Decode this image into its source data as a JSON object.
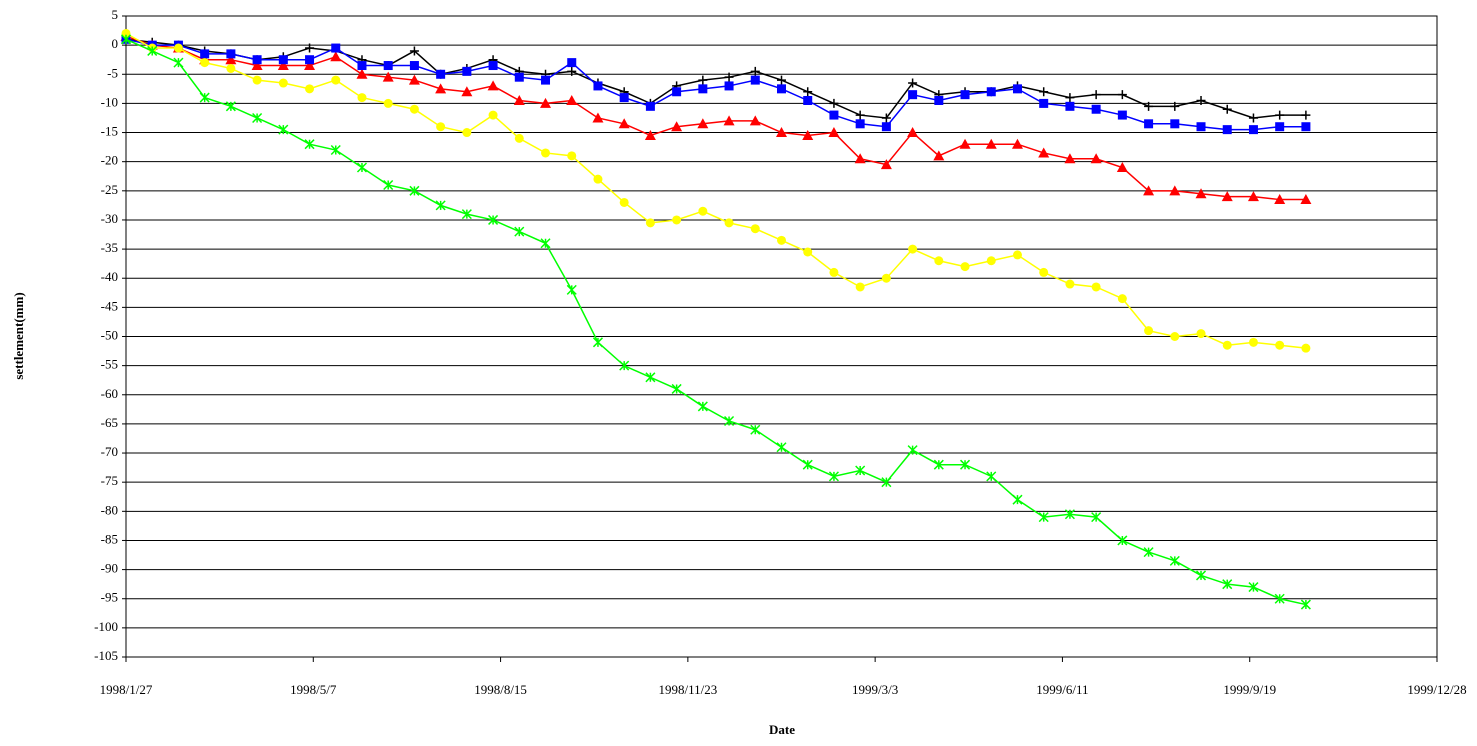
{
  "chart_data": {
    "type": "line",
    "x_label": "Date",
    "y_label": "settlement(mm)",
    "x": [
      "1998/1/27",
      "1998/2/10",
      "1998/2/24",
      "1998/3/10",
      "1998/3/24",
      "1998/4/7",
      "1998/4/21",
      "1998/5/5",
      "1998/5/19",
      "1998/6/2",
      "1998/6/16",
      "1998/6/30",
      "1998/7/14",
      "1998/7/28",
      "1998/8/11",
      "1998/8/25",
      "1998/9/8",
      "1998/9/22",
      "1998/10/6",
      "1998/10/20",
      "1998/11/3",
      "1998/11/17",
      "1998/12/1",
      "1998/12/15",
      "1998/12/29",
      "1999/1/12",
      "1999/1/26",
      "1999/2/9",
      "1999/2/23",
      "1999/3/9",
      "1999/3/23",
      "1999/4/6",
      "1999/4/20",
      "1999/5/4",
      "1999/5/18",
      "1999/6/1",
      "1999/6/15",
      "1999/6/29",
      "1999/7/13",
      "1999/7/27",
      "1999/8/10",
      "1999/8/24",
      "1999/9/7",
      "1999/9/21",
      "1999/10/5",
      "1999/10/19"
    ],
    "series": [
      {
        "name": "black",
        "color": "#000000",
        "marker": "plus",
        "values": [
          1,
          0.5,
          0,
          -1,
          -1.5,
          -2.5,
          -2,
          -0.5,
          -1,
          -2.5,
          -3.5,
          -1,
          -5,
          -4,
          -2.5,
          -4.5,
          -5,
          -4.5,
          -6.5,
          -8,
          -10,
          -7,
          -6,
          -5.5,
          -4.5,
          -6,
          -8,
          -10,
          -12,
          -12.5,
          -6.5,
          -8.5,
          -8,
          -8,
          -7,
          -8,
          -9,
          -8.5,
          -8.5,
          -10.5,
          -10.5,
          -9.5,
          -11,
          -12.5,
          -12,
          -12
        ]
      },
      {
        "name": "red",
        "color": "#ff0000",
        "marker": "triangle",
        "values": [
          1.5,
          0,
          -0.5,
          -2.5,
          -2.5,
          -3.5,
          -3.5,
          -3.5,
          -2,
          -5,
          -5.5,
          -6,
          -7.5,
          -8,
          -7,
          -9.5,
          -10,
          -9.5,
          -12.5,
          -13.5,
          -15.5,
          -14,
          -13.5,
          -13,
          -13,
          -15,
          -15.5,
          -15,
          -19.5,
          -20.5,
          -15,
          -19,
          -17,
          -17,
          -17,
          -18.5,
          -19.5,
          -19.5,
          -21,
          -25,
          -25,
          -25.5,
          -26,
          -26,
          -26.5,
          -26.5
        ]
      },
      {
        "name": "blue",
        "color": "#0000ff",
        "marker": "square",
        "values": [
          1,
          0,
          0,
          -1.5,
          -1.5,
          -2.5,
          -2.5,
          -2.5,
          -0.5,
          -3.5,
          -3.5,
          -3.5,
          -5,
          -4.5,
          -3.5,
          -5.5,
          -6,
          -3,
          -7,
          -9,
          -10.5,
          -8,
          -7.5,
          -7,
          -6,
          -7.5,
          -9.5,
          -12,
          -13.5,
          -14,
          -8.5,
          -9.5,
          -8.5,
          -8,
          -7.5,
          -10,
          -10.5,
          -11,
          -12,
          -13.5,
          -13.5,
          -14,
          -14.5,
          -14.5,
          -14,
          -14
        ]
      },
      {
        "name": "yellow",
        "color": "#ffff00",
        "marker": "circle",
        "values": [
          2,
          -0.5,
          -0.5,
          -3,
          -4,
          -6,
          -6.5,
          -7.5,
          -6,
          -9,
          -10,
          -11,
          -14,
          -15,
          -12,
          -16,
          -18.5,
          -19,
          -23,
          -27,
          -30.5,
          -30,
          -28.5,
          -30.5,
          -31.5,
          -33.5,
          -35.5,
          -39,
          -41.5,
          -40,
          -35,
          -37,
          -38,
          -37,
          -36,
          -39,
          -41,
          -41.5,
          -43.5,
          -49,
          -50,
          -49.5,
          -51.5,
          -51,
          -51.5,
          -52
        ]
      },
      {
        "name": "green",
        "color": "#00ff00",
        "marker": "star",
        "values": [
          1,
          -1,
          -3,
          -9,
          -10.5,
          -12.5,
          -14.5,
          -17,
          -18,
          -21,
          -24,
          -25,
          -27.5,
          -29,
          -30,
          -32,
          -34,
          -42,
          -51,
          -55,
          -57,
          -59,
          -62,
          -64.5,
          -66,
          -69,
          -72,
          -74,
          -73,
          -75,
          -69.5,
          -72,
          -72,
          -74,
          -78,
          -81,
          -80.5,
          -81,
          -85,
          -87,
          -88.5,
          -91,
          -92.5,
          -93,
          -95,
          -96
        ]
      }
    ],
    "xlim": [
      "1998/1/27",
      "1999/12/28"
    ],
    "xticks": [
      "1998/1/27",
      "1998/5/7",
      "1998/8/15",
      "1998/11/23",
      "1999/3/3",
      "1999/6/11",
      "1999/9/19",
      "1999/12/28"
    ],
    "ylim": [
      -105,
      5
    ],
    "yticks": [
      5,
      0,
      -5,
      -10,
      -15,
      -20,
      -25,
      -30,
      -35,
      -40,
      -45,
      -50,
      -55,
      -60,
      -65,
      -70,
      -75,
      -80,
      -85,
      -90,
      -95,
      -100,
      -105
    ],
    "grid": true
  }
}
